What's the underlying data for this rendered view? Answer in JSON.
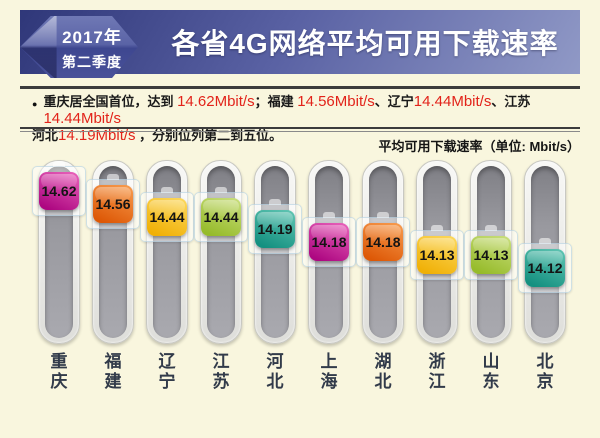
{
  "header": {
    "badge_line1": "2017年",
    "badge_line2": "第二季度",
    "title": "各省4G网络平均可用下载速率"
  },
  "note": {
    "bullet": "●",
    "segments": [
      {
        "text": "重庆居全国首位，达到 ",
        "color": "dark"
      },
      {
        "text": "14.62Mbit/s",
        "color": "red"
      },
      {
        "text": "；福建 ",
        "color": "dark"
      },
      {
        "text": "14.56Mbit/s",
        "color": "red"
      },
      {
        "text": "、辽宁",
        "color": "dark"
      },
      {
        "text": "14.44Mbit/s",
        "color": "red"
      },
      {
        "text": "、江苏",
        "color": "dark"
      },
      {
        "text": "14.44Mbit/s",
        "color": "red"
      },
      {
        "text": "\n河北",
        "color": "dark"
      },
      {
        "text": "14.19Mbit/s",
        "color": "red"
      },
      {
        "text": " ，分别位列第二到五位。",
        "color": "dark"
      }
    ]
  },
  "unit_label": "平均可用下载速率（单位: Mbit/s）",
  "chart_data": {
    "type": "bar",
    "title": "各省4G网络平均可用下载速率",
    "subtitle": "2017年第二季度",
    "unit": "Mbit/s",
    "categories": [
      "重庆",
      "福建",
      "辽宁",
      "江苏",
      "河北",
      "上海",
      "湖北",
      "浙江",
      "山东",
      "北京"
    ],
    "values": [
      14.62,
      14.56,
      14.44,
      14.44,
      14.19,
      14.18,
      14.18,
      14.13,
      14.13,
      14.12
    ],
    "legend": [],
    "grid": false,
    "style": "vertical-slider-knobs",
    "color_cycle": [
      "magenta",
      "orange",
      "yellow",
      "green",
      "teal"
    ],
    "colors": {
      "magenta": [
        "#ea64bc",
        "#ad0781"
      ],
      "orange": [
        "#f89d50",
        "#dd5806"
      ],
      "yellow": [
        "#fcd95e",
        "#f0b006"
      ],
      "green": [
        "#cadf7e",
        "#96bb2a"
      ],
      "teal": [
        "#62c6b4",
        "#149080"
      ]
    }
  }
}
